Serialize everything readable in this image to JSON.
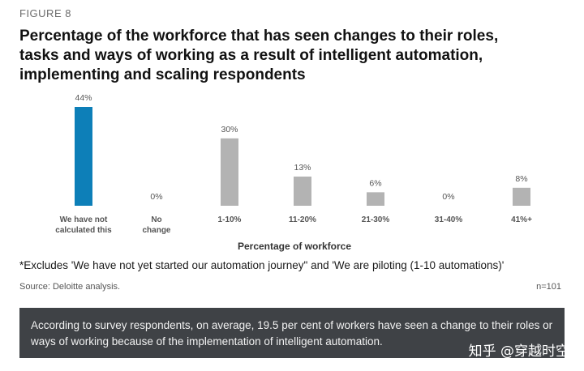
{
  "figure_label": "FIGURE 8",
  "chart_data": {
    "type": "bar",
    "title": "Percentage of the workforce that has seen changes to their roles, tasks and ways of working as a result of intelligent automation, implementing and scaling respondents",
    "xlabel": "Percentage of workforce",
    "ylabel": "",
    "categories": [
      [
        "We have not",
        "calculated this"
      ],
      [
        "No",
        "change"
      ],
      [
        "1-10%"
      ],
      [
        "11-20%"
      ],
      [
        "21-30%"
      ],
      [
        "31-40%"
      ],
      [
        "41%+"
      ]
    ],
    "values": [
      44,
      0,
      30,
      13,
      6,
      0,
      8
    ],
    "value_labels": [
      "44%",
      "0%",
      "30%",
      "13%",
      "6%",
      "0%",
      "8%"
    ],
    "ylim": [
      0,
      44
    ],
    "grid": false,
    "colors": {
      "highlight": "#0d7fb8",
      "default": "#b3b3b3",
      "label": "#555555",
      "axis_title": "#333333"
    },
    "highlight_index": 0
  },
  "footnote": "*Excludes 'We have not yet started our automation journey\" and 'We are piloting (1-10 automations)'",
  "source": "Source: Deloitte analysis.",
  "sample_size": "n=101",
  "banner_text": "According to survey respondents, on average, 19.5 per cent of workers have seen a change to their roles or ways of working because of the implementation of intelligent automation.",
  "watermark": "知乎 @穿越时空"
}
